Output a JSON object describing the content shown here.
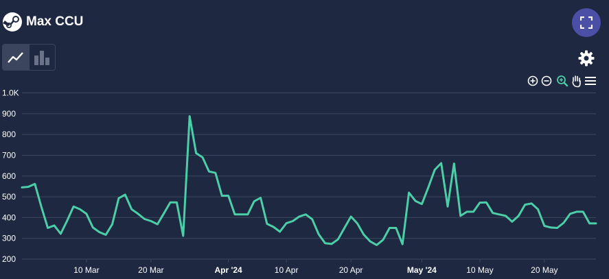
{
  "header": {
    "title": "Max CCU",
    "logo_icon": "steam-logo-icon",
    "fullscreen_icon": "fullscreen-icon"
  },
  "toolbar": {
    "chart_type_options": [
      {
        "icon": "line-chart-icon",
        "active": true
      },
      {
        "icon": "bar-chart-icon",
        "active": false
      }
    ],
    "settings_icon": "gear-icon",
    "zoom_tools": [
      "zoom-in-icon",
      "zoom-out-icon",
      "selection-zoom-icon",
      "pan-hand-icon",
      "menu-icon"
    ]
  },
  "colors": {
    "background": "#1e2841",
    "line": "#4ccfa8",
    "grid": "#3d475e",
    "accent_button": "#4c4fa6",
    "active_zoom": "#4ccfa8"
  },
  "chart_data": {
    "type": "line",
    "title": "",
    "xlabel": "",
    "ylabel": "",
    "ylim": [
      200,
      1000
    ],
    "y_ticks": [
      "200",
      "300",
      "400",
      "500",
      "600",
      "700",
      "800",
      "900",
      "1.0K"
    ],
    "x_ticks": [
      {
        "label": "10 Mar",
        "date": "2024-03-10",
        "bold": false
      },
      {
        "label": "20 Mar",
        "date": "2024-03-20",
        "bold": false
      },
      {
        "label": "Apr '24",
        "date": "2024-04-01",
        "bold": true
      },
      {
        "label": "10 Apr",
        "date": "2024-04-10",
        "bold": false
      },
      {
        "label": "20 Apr",
        "date": "2024-04-20",
        "bold": false
      },
      {
        "label": "May '24",
        "date": "2024-05-01",
        "bold": true
      },
      {
        "label": "10 May",
        "date": "2024-05-10",
        "bold": false
      },
      {
        "label": "20 May",
        "date": "2024-05-20",
        "bold": false
      }
    ],
    "x_range": [
      "2024-02-29",
      "2024-05-28"
    ],
    "grid": true,
    "legend": "none",
    "series": [
      {
        "points": [
          [
            "2024-02-29",
            545
          ],
          [
            "2024-03-01",
            548
          ],
          [
            "2024-03-02",
            562
          ],
          [
            "2024-03-03",
            452
          ],
          [
            "2024-03-04",
            350
          ],
          [
            "2024-03-05",
            362
          ],
          [
            "2024-03-06",
            322
          ],
          [
            "2024-03-07",
            385
          ],
          [
            "2024-03-08",
            453
          ],
          [
            "2024-03-09",
            440
          ],
          [
            "2024-03-10",
            418
          ],
          [
            "2024-03-11",
            352
          ],
          [
            "2024-03-12",
            330
          ],
          [
            "2024-03-13",
            317
          ],
          [
            "2024-03-14",
            368
          ],
          [
            "2024-03-15",
            493
          ],
          [
            "2024-03-16",
            510
          ],
          [
            "2024-03-17",
            440
          ],
          [
            "2024-03-18",
            418
          ],
          [
            "2024-03-19",
            393
          ],
          [
            "2024-03-20",
            383
          ],
          [
            "2024-03-21",
            368
          ],
          [
            "2024-03-22",
            420
          ],
          [
            "2024-03-23",
            473
          ],
          [
            "2024-03-24",
            473
          ],
          [
            "2024-03-25",
            312
          ],
          [
            "2024-03-26",
            888
          ],
          [
            "2024-03-27",
            710
          ],
          [
            "2024-03-28",
            690
          ],
          [
            "2024-03-29",
            622
          ],
          [
            "2024-03-30",
            615
          ],
          [
            "2024-03-31",
            505
          ],
          [
            "2024-04-01",
            505
          ],
          [
            "2024-04-02",
            415
          ],
          [
            "2024-04-03",
            415
          ],
          [
            "2024-04-04",
            415
          ],
          [
            "2024-04-05",
            478
          ],
          [
            "2024-04-06",
            495
          ],
          [
            "2024-04-07",
            370
          ],
          [
            "2024-04-08",
            355
          ],
          [
            "2024-04-09",
            332
          ],
          [
            "2024-04-10",
            373
          ],
          [
            "2024-04-11",
            383
          ],
          [
            "2024-04-12",
            405
          ],
          [
            "2024-04-13",
            415
          ],
          [
            "2024-04-14",
            392
          ],
          [
            "2024-04-15",
            320
          ],
          [
            "2024-04-16",
            277
          ],
          [
            "2024-04-17",
            273
          ],
          [
            "2024-04-18",
            295
          ],
          [
            "2024-04-19",
            350
          ],
          [
            "2024-04-20",
            405
          ],
          [
            "2024-04-21",
            372
          ],
          [
            "2024-04-22",
            318
          ],
          [
            "2024-04-23",
            285
          ],
          [
            "2024-04-24",
            268
          ],
          [
            "2024-04-25",
            293
          ],
          [
            "2024-04-26",
            350
          ],
          [
            "2024-04-27",
            350
          ],
          [
            "2024-04-28",
            272
          ],
          [
            "2024-04-29",
            520
          ],
          [
            "2024-04-30",
            480
          ],
          [
            "2024-05-01",
            465
          ],
          [
            "2024-05-02",
            545
          ],
          [
            "2024-05-03",
            630
          ],
          [
            "2024-05-04",
            662
          ],
          [
            "2024-05-05",
            453
          ],
          [
            "2024-05-06",
            660
          ],
          [
            "2024-05-07",
            408
          ],
          [
            "2024-05-08",
            428
          ],
          [
            "2024-05-09",
            428
          ],
          [
            "2024-05-10",
            472
          ],
          [
            "2024-05-11",
            473
          ],
          [
            "2024-05-12",
            422
          ],
          [
            "2024-05-13",
            415
          ],
          [
            "2024-05-14",
            408
          ],
          [
            "2024-05-15",
            380
          ],
          [
            "2024-05-16",
            408
          ],
          [
            "2024-05-17",
            462
          ],
          [
            "2024-05-18",
            468
          ],
          [
            "2024-05-19",
            440
          ],
          [
            "2024-05-20",
            360
          ],
          [
            "2024-05-21",
            352
          ],
          [
            "2024-05-22",
            350
          ],
          [
            "2024-05-23",
            375
          ],
          [
            "2024-05-24",
            418
          ],
          [
            "2024-05-25",
            428
          ],
          [
            "2024-05-26",
            428
          ],
          [
            "2024-05-27",
            372
          ],
          [
            "2024-05-28",
            372
          ]
        ]
      }
    ]
  }
}
